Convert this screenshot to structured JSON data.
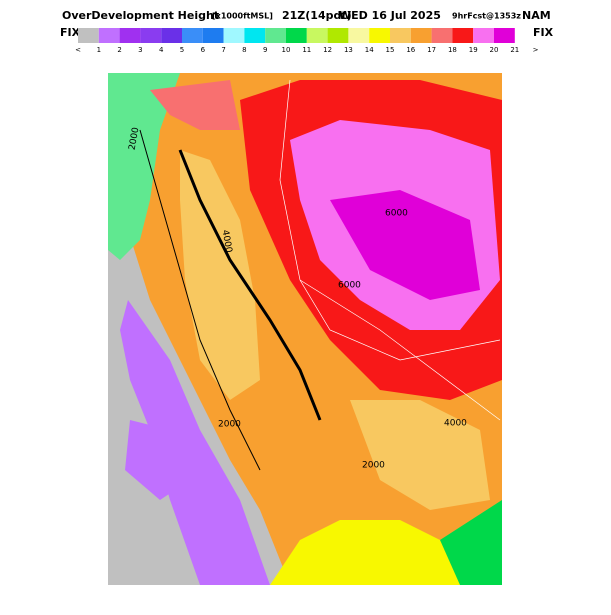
{
  "header": {
    "title": "OverDevelopment Height",
    "units": "[x1000ftMSL]",
    "time": "21Z(14pdt)",
    "date": "WED 16 Jul 2025",
    "forecast": "9hrFcst@1353z",
    "model": "NAM"
  },
  "legend": {
    "left": "FIX",
    "right": "FIX",
    "colors": [
      "#c0c0c0",
      "#c070ff",
      "#a030f0",
      "#8a3cf0",
      "#6a30e8",
      "#3a8ef8",
      "#1e7cf0",
      "#a0f8ff",
      "#00e6f0",
      "#60e890",
      "#00d84a",
      "#c8f860",
      "#b0e800",
      "#f8f8a0",
      "#f8f800",
      "#f8c860",
      "#f8a030",
      "#f87070",
      "#f81818",
      "#f870f0",
      "#e000d8"
    ],
    "labels": [
      "<",
      "1",
      "2",
      "3",
      "4",
      "5",
      "6",
      "7",
      "8",
      "9",
      "10",
      "11",
      "12",
      "13",
      "14",
      "15",
      "16",
      "17",
      "18",
      "19",
      "20",
      "21",
      ">"
    ]
  },
  "map": {
    "contour_labels": [
      "2000",
      "4000",
      "6000",
      "6000",
      "2000",
      "4000",
      "2000"
    ]
  }
}
